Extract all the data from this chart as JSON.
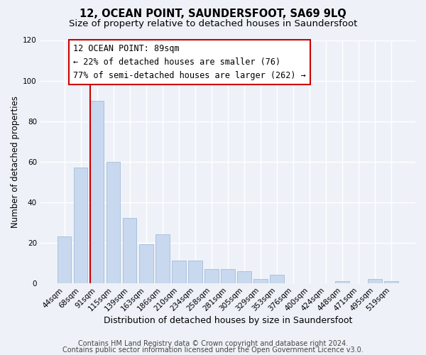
{
  "title": "12, OCEAN POINT, SAUNDERSFOOT, SA69 9LQ",
  "subtitle": "Size of property relative to detached houses in Saundersfoot",
  "xlabel": "Distribution of detached houses by size in Saundersfoot",
  "ylabel": "Number of detached properties",
  "bar_labels": [
    "44sqm",
    "68sqm",
    "91sqm",
    "115sqm",
    "139sqm",
    "163sqm",
    "186sqm",
    "210sqm",
    "234sqm",
    "258sqm",
    "281sqm",
    "305sqm",
    "329sqm",
    "353sqm",
    "376sqm",
    "400sqm",
    "424sqm",
    "448sqm",
    "471sqm",
    "495sqm",
    "519sqm"
  ],
  "bar_values": [
    23,
    57,
    90,
    60,
    32,
    19,
    24,
    11,
    11,
    7,
    7,
    6,
    2,
    4,
    0,
    0,
    0,
    1,
    0,
    2,
    1
  ],
  "bar_color": "#c8d8ee",
  "bar_edge_color": "#9ab4d4",
  "vline_color": "#cc0000",
  "annotation_line0": "12 OCEAN POINT: 89sqm",
  "annotation_line1": "← 22% of detached houses are smaller (76)",
  "annotation_line2": "77% of semi-detached houses are larger (262) →",
  "annotation_box_facecolor": "#ffffff",
  "annotation_box_edgecolor": "#cc0000",
  "ylim": [
    0,
    120
  ],
  "yticks": [
    0,
    20,
    40,
    60,
    80,
    100,
    120
  ],
  "footnote1": "Contains HM Land Registry data © Crown copyright and database right 2024.",
  "footnote2": "Contains public sector information licensed under the Open Government Licence v3.0.",
  "bg_color": "#eef2f8",
  "plot_bg_color": "#eef2f8",
  "grid_color": "#ffffff",
  "title_fontsize": 10.5,
  "subtitle_fontsize": 9.5,
  "xlabel_fontsize": 9,
  "ylabel_fontsize": 8.5,
  "tick_fontsize": 7.5,
  "annot_fontsize": 8.5,
  "footnote_fontsize": 7
}
